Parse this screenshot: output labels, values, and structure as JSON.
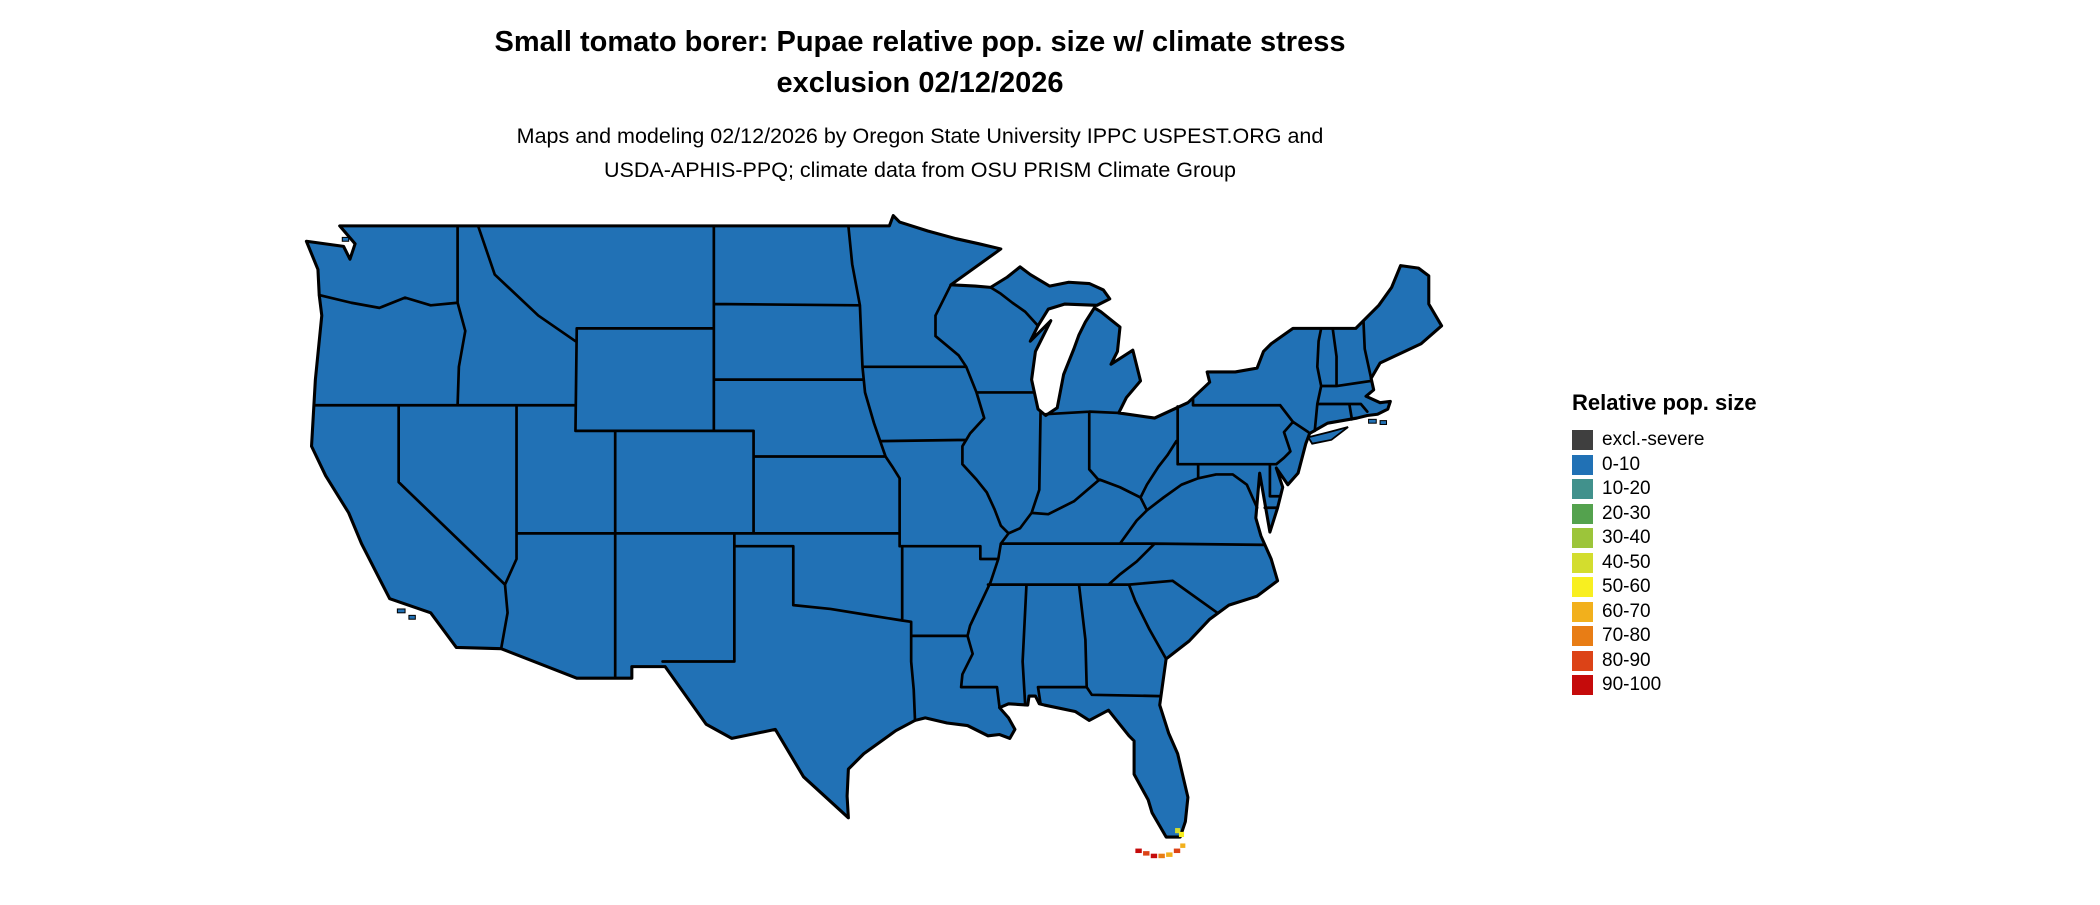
{
  "header": {
    "title_line1": "Small tomato borer: Pupae relative pop. size w/ climate stress",
    "title_line2": "exclusion 02/12/2026",
    "subtitle_line1": "Maps and modeling 02/12/2026 by Oregon State University IPPC USPEST.ORG and",
    "subtitle_line2": "USDA-APHIS-PPQ; climate data from OSU PRISM Climate Group"
  },
  "legend": {
    "title": "Relative pop. size",
    "items": [
      {
        "label": "excl.-severe",
        "color": "#3f3f3f"
      },
      {
        "label": "0-10",
        "color": "#2171b5"
      },
      {
        "label": "10-20",
        "color": "#41918c"
      },
      {
        "label": "20-30",
        "color": "#54a24e"
      },
      {
        "label": "30-40",
        "color": "#9cc53a"
      },
      {
        "label": "40-50",
        "color": "#d3dd2e"
      },
      {
        "label": "50-60",
        "color": "#f8ef20"
      },
      {
        "label": "60-70",
        "color": "#f2b01c"
      },
      {
        "label": "70-80",
        "color": "#e87d15"
      },
      {
        "label": "80-90",
        "color": "#dc4317"
      },
      {
        "label": "90-100",
        "color": "#c50b0b"
      }
    ]
  },
  "map": {
    "region": "Contiguous United States",
    "dominant_category": "0-10",
    "colors": {
      "fill": "#2171b5",
      "border": "#000000",
      "background": "#ffffff"
    },
    "hotspots": [
      {
        "location": "South Florida tip",
        "categories": [
          "40-50",
          "50-60"
        ]
      },
      {
        "location": "Florida Keys",
        "categories": [
          "60-70",
          "70-80",
          "80-90",
          "90-100"
        ]
      }
    ]
  }
}
